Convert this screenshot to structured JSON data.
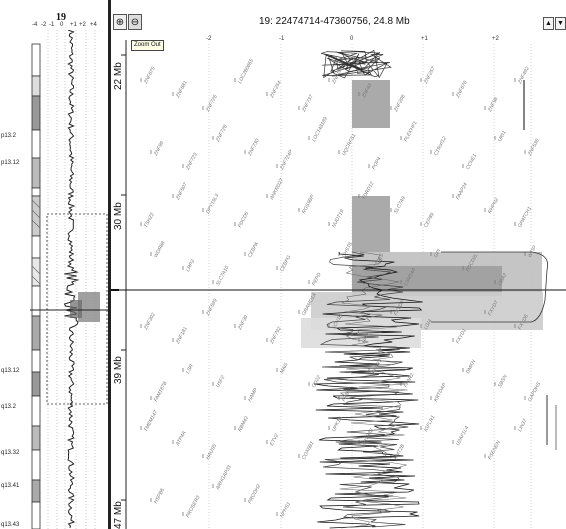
{
  "overview": {
    "chromosome": "19",
    "axis_ticks": [
      "-4",
      "-2",
      "-1",
      "0",
      "+1",
      "+2",
      "+4"
    ],
    "bands": [
      "p13.2",
      "p13.12",
      "q13.12",
      "q13.2",
      "q13.32",
      "q13.41",
      "q13.43"
    ]
  },
  "toolbar": {
    "zoom_in_icon": "zoom-in-icon",
    "zoom_out_icon": "zoom-out-icon",
    "zoom_out_tooltip": "Zoom Out"
  },
  "header": {
    "region_title": "19: 22474714-47360756, 24.8 Mb",
    "scroll_up": "▲",
    "scroll_down": "▼"
  },
  "main": {
    "axis_ticks": [
      "-2",
      "-1",
      "0",
      "+1",
      "+2"
    ],
    "position_labels": [
      "22 Mb",
      "30 Mb",
      "39 Mb",
      "47 Mb"
    ],
    "genes": [
      "ZNF675",
      "ZNF681",
      "ZNF726",
      "LOC280665",
      "ZNF254",
      "ZNF737",
      "ZNF100",
      "ZNF43",
      "ZNF208",
      "ZNF257",
      "ZNF676",
      "ZNF98",
      "ZNF492",
      "ZNF99",
      "ZNF723",
      "ZNF728",
      "ZNF730",
      "ZNF724P",
      "LOC148189",
      "UQCRFS1",
      "POP4",
      "PLEKHF1",
      "C19orf12",
      "CCNE1",
      "URI1",
      "ZNF536",
      "TSHZ3",
      "ZNF507",
      "DPY19L3",
      "PDCD5",
      "ANKRD27",
      "RGS9BP",
      "NUDT19",
      "TDRD12",
      "SLC7A9",
      "CEP89",
      "FAAP24",
      "RHPN2",
      "GPATCH1",
      "WDR88",
      "LRP3",
      "SLC7A10",
      "CEBPA",
      "CEBPG",
      "PEPD",
      "CHST8",
      "KCTD15",
      "LSM14A",
      "GPI",
      "PDCD2L",
      "UBA2",
      "WTIP",
      "ZNF302",
      "ZNF181",
      "ZNF599",
      "ZNF30",
      "ZNF792",
      "GRAMD1A",
      "SCN1B",
      "HPN",
      "FXYD3",
      "LGI4",
      "FXYD1",
      "FXYD7",
      "FXYD5",
      "FAM187B",
      "LSR",
      "USF2",
      "HAMP",
      "MAG",
      "CD22",
      "FFAR1",
      "FFAR3",
      "FFAR2",
      "KRTDAP",
      "DMKN",
      "SBSN",
      "GAPDHS",
      "TMEM147",
      "ATP4A",
      "HAUS5",
      "RBM42",
      "ETV2",
      "COX6B1",
      "UPK1A",
      "ZBTB32",
      "KMT2B",
      "IGFLR1",
      "U2AF1L4",
      "PSENEN",
      "LIN37",
      "HSPB6",
      "PROSER3",
      "ARHGAP33",
      "PRODH2",
      "NPHS1"
    ]
  }
}
